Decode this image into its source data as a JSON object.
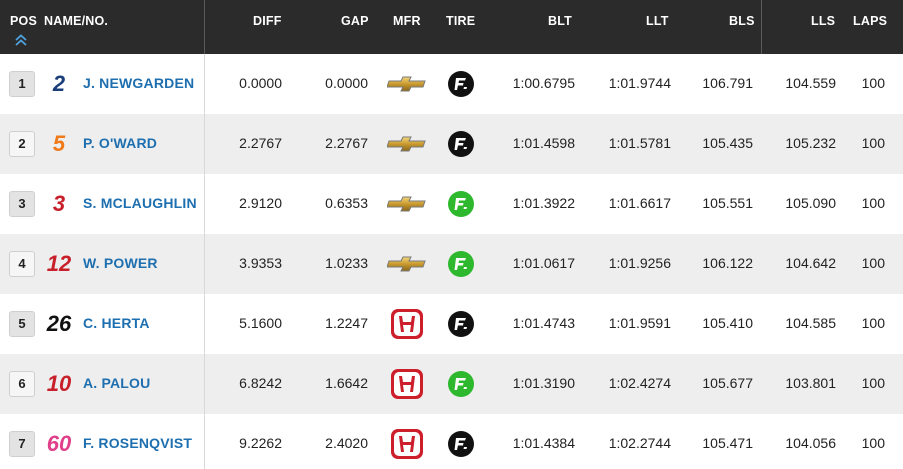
{
  "header": {
    "pos": "POS",
    "name": "NAME/NO.",
    "diff": "DIFF",
    "gap": "GAP",
    "mfr": "MFR",
    "tire": "TIRE",
    "blt": "BLT",
    "llt": "LLT",
    "bls": "BLS",
    "lls": "LLS",
    "laps": "LAPS",
    "sort_icon": "double-chevron-up-icon"
  },
  "colors": {
    "header_bg": "#2b2b2b",
    "name_blue": "#1e6fb0",
    "tire_primary": "#111111",
    "tire_alternate": "#2db82d",
    "honda_red": "#cc1f2b"
  },
  "rows": [
    {
      "pos": "1",
      "number": "2",
      "number_color": "#1a3e7a",
      "name": "J. NEWGARDEN",
      "diff": "0.0000",
      "gap": "0.0000",
      "mfr": "chevrolet",
      "tire": "primary",
      "blt": "1:00.6795",
      "llt": "1:01.9744",
      "bls": "106.791",
      "lls": "104.559",
      "laps": "100"
    },
    {
      "pos": "2",
      "number": "5",
      "number_color": "#f07a1a",
      "name": "P. O'WARD",
      "diff": "2.2767",
      "gap": "2.2767",
      "mfr": "chevrolet",
      "tire": "primary",
      "blt": "1:01.4598",
      "llt": "1:01.5781",
      "bls": "105.435",
      "lls": "105.232",
      "laps": "100"
    },
    {
      "pos": "3",
      "number": "3",
      "number_color": "#c8202a",
      "name": "S. MCLAUGHLIN",
      "diff": "2.9120",
      "gap": "0.6353",
      "mfr": "chevrolet",
      "tire": "alternate",
      "blt": "1:01.3922",
      "llt": "1:01.6617",
      "bls": "105.551",
      "lls": "105.090",
      "laps": "100"
    },
    {
      "pos": "4",
      "number": "12",
      "number_color": "#c8202a",
      "name": "W. POWER",
      "diff": "3.9353",
      "gap": "1.0233",
      "mfr": "chevrolet",
      "tire": "alternate",
      "blt": "1:01.0617",
      "llt": "1:01.9256",
      "bls": "106.122",
      "lls": "104.642",
      "laps": "100"
    },
    {
      "pos": "5",
      "number": "26",
      "number_color": "#111111",
      "name": "C. HERTA",
      "diff": "5.1600",
      "gap": "1.2247",
      "mfr": "honda",
      "tire": "primary",
      "blt": "1:01.4743",
      "llt": "1:01.9591",
      "bls": "105.410",
      "lls": "104.585",
      "laps": "100"
    },
    {
      "pos": "6",
      "number": "10",
      "number_color": "#c8202a",
      "name": "A. PALOU",
      "diff": "6.8242",
      "gap": "1.6642",
      "mfr": "honda",
      "tire": "alternate",
      "blt": "1:01.3190",
      "llt": "1:02.4274",
      "bls": "105.677",
      "lls": "103.801",
      "laps": "100"
    },
    {
      "pos": "7",
      "number": "60",
      "number_color": "#e0408a",
      "name": "F. ROSENQVIST",
      "diff": "9.2262",
      "gap": "2.4020",
      "mfr": "honda",
      "tire": "primary",
      "blt": "1:01.4384",
      "llt": "1:02.2744",
      "bls": "105.471",
      "lls": "104.056",
      "laps": "100"
    }
  ]
}
